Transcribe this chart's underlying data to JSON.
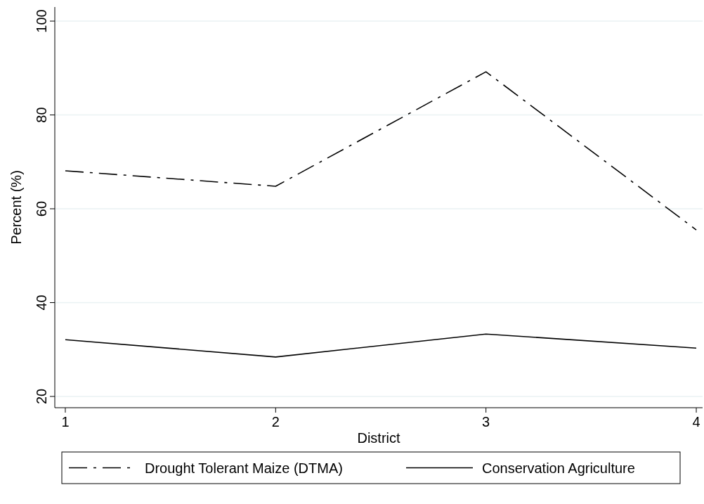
{
  "chart_data": {
    "type": "line",
    "xlabel": "District",
    "ylabel": "Percent (%)",
    "x": [
      1,
      2,
      3,
      4
    ],
    "xlim": [
      0.95,
      4.03
    ],
    "xticks": [
      1,
      2,
      3,
      4
    ],
    "ylim": [
      17.6,
      103
    ],
    "yticks": [
      20,
      40,
      60,
      80,
      100
    ],
    "grid": "y",
    "legend": "bottom",
    "marker": "none",
    "series": [
      {
        "name": "Drought Tolerant Maize (DTMA)",
        "color": "#000000",
        "line_style": "dashed",
        "values": [
          68.1,
          64.8,
          89.2,
          55.5
        ]
      },
      {
        "name": "Conservation Agriculture",
        "color": "#000000",
        "line_style": "solid",
        "values": [
          32.1,
          28.4,
          33.3,
          30.3
        ]
      }
    ]
  }
}
